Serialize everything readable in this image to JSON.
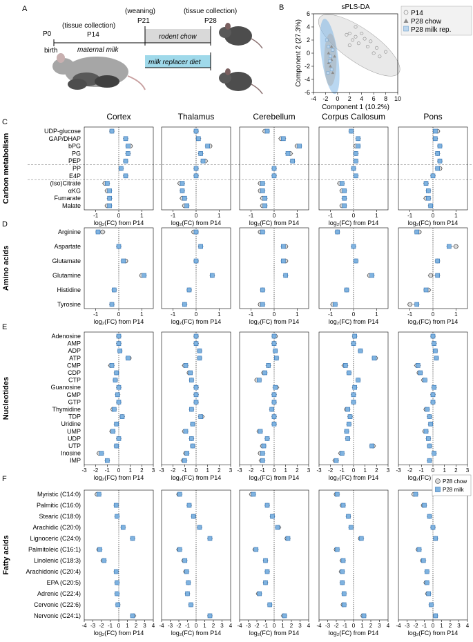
{
  "panel_letters": {
    "a": "A",
    "b": "B",
    "c": "C",
    "d": "D",
    "e": "E",
    "f": "F"
  },
  "timeline": {
    "weaning_label": "(weaning)",
    "tissue_collection_1": "(tissue collection)",
    "tissue_collection_2": "(tissue collection)",
    "p0": "P0",
    "p14": "P14",
    "p21": "P21",
    "p28": "P28",
    "birth": "birth",
    "maternal": "maternal milk",
    "chow": "rodent chow",
    "replacer": "milk replacer diet"
  },
  "colors": {
    "chow": "#d9d9d9",
    "milk": "#7fb3e0",
    "milk_dark": "#2f6fb0",
    "p14_ellipse": "#bfbfbf",
    "p28m_ellipse": "#7fb6e6",
    "replacer_band": "#9fd9ea"
  },
  "chart_data": [
    {
      "type": "scatter",
      "title": "sPLS-DA",
      "xlabel": "Component 1 (10.2%)",
      "ylabel": "Component 2 (27.3%)",
      "xlim": [
        -4,
        10
      ],
      "ylim": [
        -6,
        6
      ],
      "xticks": [
        "-4",
        "-2",
        "0",
        "2",
        "4",
        "6",
        "8",
        "10"
      ],
      "yticks": [
        "6",
        "4",
        "2",
        "0",
        "-2",
        "-4",
        "-6"
      ],
      "legend": [
        "P14",
        "P28 chow",
        "P28 milk rep."
      ],
      "series": [
        {
          "name": "P14",
          "points": [
            [
              2,
              3
            ],
            [
              3,
              2.5
            ],
            [
              4,
              3
            ],
            [
              5,
              1
            ],
            [
              6,
              0
            ],
            [
              7,
              -0.5
            ],
            [
              3,
              4
            ],
            [
              2.5,
              2
            ],
            [
              4.5,
              2.2
            ],
            [
              5.5,
              1.8
            ],
            [
              1.5,
              2.8
            ],
            [
              6.5,
              0.8
            ],
            [
              8,
              0.2
            ],
            [
              3.5,
              1.5
            ],
            [
              2,
              1.2
            ]
          ]
        },
        {
          "name": "P28 chow",
          "points": [
            [
              -1.5,
              0
            ],
            [
              -1,
              -1
            ],
            [
              -1.2,
              -2
            ],
            [
              -0.8,
              -3
            ],
            [
              -1.5,
              -1.5
            ],
            [
              -1,
              1
            ],
            [
              -0.5,
              -0.5
            ]
          ]
        },
        {
          "name": "P28 milk rep.",
          "points": [
            [
              -1.8,
              2
            ],
            [
              -1.5,
              1
            ],
            [
              -1.2,
              -0.5
            ],
            [
              -1,
              -2.5
            ],
            [
              -1.6,
              -3
            ],
            [
              -0.8,
              0.5
            ],
            [
              -1.3,
              -1.2
            ]
          ]
        }
      ]
    },
    {
      "type": "dot-plot",
      "section": "Carbon metabolism",
      "ylabel": "Carbon metabolism",
      "xlabel": "log₂(FC) from P14",
      "xlim": [
        -1.5,
        1.5
      ],
      "xticks": [
        "-1",
        "0",
        "1"
      ],
      "columns": [
        "Cortex",
        "Thalamus",
        "Cerebellum",
        "Corpus Callosum",
        "Pons"
      ],
      "rows": [
        "UDP-glucose",
        "GAP/DHAP",
        "bPG",
        "PG",
        "PEP",
        "PP",
        "E4P",
        "(Iso)Citrate",
        "αKG",
        "Fumarate",
        "Malate"
      ],
      "chow": [
        [
          -0.3,
          0.3,
          0.5,
          0.4,
          0.3,
          0.1,
          0.3,
          -0.6,
          -0.5,
          -0.4,
          -0.5
        ],
        [
          0.0,
          0.1,
          0.6,
          0.2,
          0.4,
          0.0,
          0.0,
          -0.7,
          -0.6,
          -0.6,
          -0.5
        ],
        [
          -0.4,
          0.3,
          1.0,
          0.7,
          0.8,
          0.0,
          0.0,
          -0.6,
          -0.6,
          -0.5,
          -0.5
        ],
        [
          -0.1,
          0.2,
          0.1,
          0.1,
          0.1,
          0.0,
          0.1,
          -0.6,
          -0.5,
          -0.4,
          -0.5
        ],
        [
          0.2,
          0.1,
          0.3,
          0.2,
          0.3,
          0.3,
          0.0,
          -0.3,
          -0.2,
          -0.3,
          -0.1
        ]
      ],
      "milk": [
        [
          -0.3,
          0.3,
          0.4,
          0.4,
          0.3,
          0.1,
          0.3,
          -0.5,
          -0.4,
          -0.4,
          -0.4
        ],
        [
          0.0,
          0.1,
          0.5,
          0.2,
          0.3,
          0.0,
          0.0,
          -0.6,
          -0.6,
          -0.5,
          -0.4
        ],
        [
          -0.3,
          0.4,
          1.1,
          0.6,
          0.8,
          0.0,
          0.0,
          -0.5,
          -0.5,
          -0.4,
          -0.4
        ],
        [
          -0.1,
          0.2,
          0.2,
          0.1,
          0.1,
          0.0,
          0.1,
          -0.5,
          -0.4,
          -0.4,
          -0.4
        ],
        [
          0.1,
          0.1,
          0.3,
          0.2,
          0.3,
          0.2,
          0.0,
          -0.3,
          -0.2,
          -0.2,
          -0.1
        ]
      ]
    },
    {
      "type": "dot-plot",
      "section": "Amino acids",
      "ylabel": "Amino acids",
      "xlabel": "log₂(FC) from P14",
      "xlim": [
        -1.5,
        1.5
      ],
      "xticks": [
        "-1",
        "0",
        "1"
      ],
      "columns": [
        "Cortex",
        "Thalamus",
        "Cerebellum",
        "Corpus Callosum",
        "Pons"
      ],
      "rows": [
        "Arginine",
        "Aspartate",
        "Glutamate",
        "Glutamine",
        "Histidine",
        "Tyrosine"
      ],
      "chow": [
        [
          -0.7,
          0.0,
          0.3,
          1.0,
          -0.2,
          -0.3
        ],
        [
          -0.1,
          0.2,
          0.0,
          0.7,
          -0.3,
          -0.5
        ],
        [
          -0.6,
          0.5,
          0.5,
          0.5,
          -0.5,
          -0.6
        ],
        [
          -0.7,
          0.0,
          0.1,
          0.7,
          -0.3,
          -0.9
        ],
        [
          -0.6,
          1.0,
          0.2,
          -0.1,
          -0.2,
          -1.0
        ]
      ],
      "milk": [
        [
          -0.9,
          0.0,
          0.2,
          1.1,
          -0.2,
          -0.3
        ],
        [
          0.0,
          0.2,
          0.0,
          0.7,
          -0.3,
          -0.5
        ],
        [
          -0.5,
          0.4,
          0.4,
          0.5,
          -0.5,
          -0.5
        ],
        [
          -0.7,
          0.0,
          0.1,
          0.8,
          -0.3,
          -0.8
        ],
        [
          -0.7,
          0.7,
          0.2,
          0.2,
          -0.3,
          -0.7
        ]
      ]
    },
    {
      "type": "dot-plot",
      "section": "Nucleotides",
      "ylabel": "Nucleotides",
      "xlabel": "log₂(FC) from P14",
      "xlim": [
        -3,
        3
      ],
      "xticks": [
        "-3",
        "-2",
        "-1",
        "0",
        "1",
        "2",
        "3"
      ],
      "columns": [
        "Cortex",
        "Thalamus",
        "Cerebellum",
        "Corpus Callosum",
        "Pons"
      ],
      "rows": [
        "Adenosine",
        "AMP",
        "ADP",
        "ATP",
        "CMP",
        "CDP",
        "CTP",
        "Guanosine",
        "GMP",
        "GTP",
        "Thymidine",
        "TDP",
        "Uridine",
        "UMP",
        "UDP",
        "UTP",
        "Inosine",
        "IMP"
      ],
      "chow": [
        [
          0.0,
          0.0,
          0.1,
          0.9,
          -0.7,
          -0.2,
          -0.3,
          0.0,
          -0.1,
          0.0,
          -0.5,
          0.3,
          -0.2,
          -0.6,
          0.0,
          -0.2,
          -1.7,
          -1.0
        ],
        [
          0.0,
          0.0,
          0.3,
          0.3,
          -1.0,
          -0.6,
          -0.4,
          0.0,
          0.0,
          0.0,
          -0.4,
          0.5,
          -0.3,
          -1.0,
          -0.4,
          -0.3,
          -0.9,
          -1.1
        ],
        [
          0.1,
          0.0,
          0.1,
          0.2,
          -0.5,
          -0.9,
          -1.5,
          0.2,
          0.0,
          0.0,
          -0.2,
          0.0,
          0.0,
          -1.3,
          -0.6,
          -1.0,
          -1.2,
          -1.1
        ],
        [
          0.1,
          0.0,
          0.6,
          1.9,
          -0.8,
          -0.4,
          0.4,
          0.1,
          0.0,
          0.0,
          -0.6,
          -0.3,
          -0.4,
          -0.6,
          -0.5,
          1.7,
          -1.1,
          -1.6
        ],
        [
          0.0,
          0.1,
          0.2,
          0.3,
          -1.4,
          -1.2,
          -0.8,
          0.1,
          0.0,
          0.0,
          -0.6,
          -0.3,
          -0.2,
          -0.7,
          -0.4,
          -0.3,
          0.1,
          -0.3
        ]
      ],
      "milk": [
        [
          0.0,
          0.0,
          0.1,
          0.8,
          -0.6,
          -0.2,
          -0.3,
          0.0,
          -0.1,
          0.0,
          -0.4,
          0.3,
          -0.2,
          -0.5,
          0.0,
          -0.2,
          -1.5,
          -1.0
        ],
        [
          0.0,
          0.0,
          0.3,
          0.3,
          -0.9,
          -0.5,
          -0.4,
          0.0,
          0.0,
          0.0,
          -0.4,
          0.4,
          -0.3,
          -0.9,
          -0.4,
          -0.3,
          -0.8,
          -1.0
        ],
        [
          0.0,
          0.0,
          0.1,
          0.2,
          -0.5,
          -0.8,
          -1.3,
          0.1,
          0.0,
          0.0,
          -0.2,
          0.0,
          0.0,
          -1.2,
          -0.6,
          -0.9,
          -1.0,
          -1.0
        ],
        [
          0.1,
          0.0,
          0.6,
          1.8,
          -0.7,
          -0.4,
          0.4,
          0.1,
          0.0,
          0.0,
          -0.5,
          -0.3,
          -0.4,
          -0.6,
          -0.5,
          1.6,
          -1.0,
          -1.5
        ],
        [
          0.0,
          0.1,
          0.2,
          0.3,
          -1.3,
          -1.1,
          -0.7,
          0.1,
          0.0,
          0.0,
          -0.5,
          -0.3,
          -0.2,
          -0.6,
          -0.4,
          -0.3,
          0.1,
          -0.3
        ]
      ]
    },
    {
      "type": "dot-plot",
      "section": "Fatty acids",
      "ylabel": "Fatty acids",
      "xlabel": "log₂(FC) from P14",
      "xlim": [
        -4,
        4
      ],
      "xticks": [
        "-4",
        "-3",
        "-2",
        "-1",
        "0",
        "1",
        "2",
        "3",
        "4"
      ],
      "columns": [
        "Cortex",
        "Thalamus",
        "Cerebellum",
        "Corpus Callosum",
        "Pons"
      ],
      "rows": [
        "Myristic (C14:0)",
        "Palmitic (C16:0)",
        "Stearic (C18:0)",
        "Arachidic (C20:0)",
        "Lignoceric (C24:0)",
        "Palmitoleic (C16:1)",
        "Linolenic (C18:3)",
        "Arachidonic (C20:4)",
        "EPA (C20:5)",
        "Adrenic (C22:4)",
        "Cervonic (C22:6)",
        "Nervonic (C24:1)"
      ],
      "chow": [
        [
          -2.5,
          -0.3,
          -0.2,
          0.5,
          1.6,
          -2.3,
          -1.8,
          -0.3,
          -0.2,
          -0.2,
          -0.1,
          1.7
        ],
        [
          -2.0,
          -0.8,
          -0.3,
          0.4,
          1.6,
          -2.0,
          -1.4,
          -1.2,
          -0.9,
          -1.0,
          -0.6,
          1.6
        ],
        [
          -2.6,
          -0.8,
          -0.2,
          0.5,
          1.5,
          -2.2,
          -1.0,
          -0.8,
          -1.0,
          -1.8,
          -0.5,
          1.1
        ],
        [
          -2.0,
          -1.3,
          -0.6,
          -0.3,
          0.8,
          -2.0,
          -1.3,
          -1.4,
          -1.3,
          -1.1,
          -1.2,
          1.1
        ],
        [
          -2.2,
          -1.1,
          -0.4,
          0.0,
          0.3,
          -1.7,
          -1.2,
          -0.7,
          -0.8,
          -0.6,
          -0.2,
          0.3
        ]
      ],
      "milk": [
        [
          -2.3,
          -0.3,
          -0.2,
          0.5,
          1.6,
          -2.2,
          -1.7,
          -0.3,
          -0.2,
          -0.2,
          -0.1,
          1.6
        ],
        [
          -1.9,
          -0.8,
          -0.3,
          0.4,
          1.6,
          -1.9,
          -1.3,
          -1.1,
          -0.9,
          -1.0,
          -0.6,
          1.6
        ],
        [
          -2.4,
          -0.8,
          -0.2,
          0.4,
          1.6,
          -2.1,
          -1.0,
          -0.8,
          -1.0,
          -1.7,
          -0.5,
          1.2
        ],
        [
          -1.9,
          -1.2,
          -0.6,
          -0.3,
          0.9,
          -1.9,
          -1.2,
          -1.3,
          -1.3,
          -1.1,
          -1.1,
          1.2
        ],
        [
          -2.0,
          -1.0,
          -0.4,
          0.0,
          0.3,
          -1.6,
          -1.1,
          -0.7,
          -0.7,
          -0.5,
          -0.2,
          0.3
        ]
      ]
    }
  ],
  "legend_f": {
    "chow": "P28 chow",
    "milk": "P28 milk"
  }
}
